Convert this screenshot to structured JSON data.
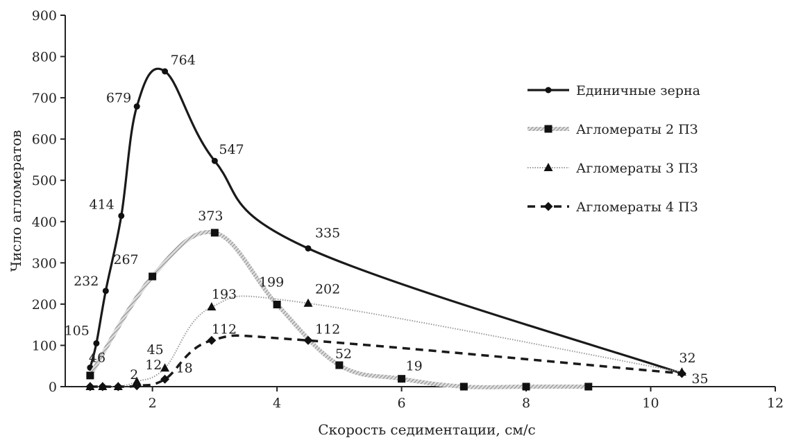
{
  "chart_data": {
    "type": "line",
    "title": "",
    "xlabel": "Скорость седиментации, см/с",
    "ylabel": "Число агломератов",
    "xlim": [
      0.6,
      12
    ],
    "ylim": [
      0,
      900
    ],
    "xticks": [
      2,
      4,
      6,
      8,
      10,
      12
    ],
    "yticks": [
      0,
      100,
      200,
      300,
      400,
      500,
      600,
      700,
      800,
      900
    ],
    "grid": false,
    "legend_position": "right",
    "series": [
      {
        "name": "Единичные зерна",
        "style": "solid",
        "marker": "circle",
        "color": "#1a1a1a",
        "points": [
          [
            1.0,
            46
          ],
          [
            1.1,
            105
          ],
          [
            1.25,
            232
          ],
          [
            1.5,
            414
          ],
          [
            1.75,
            679
          ],
          [
            2.2,
            764
          ],
          [
            3.0,
            547
          ],
          [
            4.5,
            335
          ],
          [
            10.5,
            32
          ]
        ],
        "labels": [
          "46",
          "105",
          "232",
          "414",
          "679",
          "764",
          "547",
          "335",
          "32"
        ]
      },
      {
        "name": "Агломераты 2 ПЗ",
        "style": "hatched",
        "marker": "square",
        "color": "#999999",
        "points": [
          [
            1.0,
            27
          ],
          [
            2.0,
            267
          ],
          [
            3.0,
            373
          ],
          [
            4.0,
            199
          ],
          [
            5.0,
            52
          ],
          [
            6.0,
            19
          ],
          [
            7.0,
            0
          ],
          [
            8.0,
            0
          ],
          [
            9.0,
            0
          ]
        ],
        "labels": [
          "",
          "267",
          "373",
          "199",
          "52",
          "19",
          "",
          "",
          ""
        ]
      },
      {
        "name": "Агломераты 3 ПЗ",
        "style": "dotted",
        "marker": "triangle",
        "color": "#aaaaaa",
        "points": [
          [
            1.0,
            0
          ],
          [
            1.2,
            0
          ],
          [
            1.45,
            0
          ],
          [
            1.75,
            12
          ],
          [
            2.2,
            45
          ],
          [
            2.95,
            193
          ],
          [
            4.5,
            202
          ],
          [
            10.5,
            35
          ]
        ],
        "labels": [
          "",
          "",
          "",
          "12",
          "45",
          "193",
          "202",
          "35"
        ]
      },
      {
        "name": "Агломераты 4 ПЗ",
        "style": "dashed",
        "marker": "diamond",
        "color": "#1a1a1a",
        "points": [
          [
            1.0,
            0
          ],
          [
            1.2,
            0
          ],
          [
            1.45,
            0
          ],
          [
            1.75,
            2
          ],
          [
            2.2,
            18
          ],
          [
            2.95,
            112
          ],
          [
            4.5,
            112
          ],
          [
            10.5,
            32
          ]
        ],
        "labels": [
          "",
          "",
          "",
          "2",
          "18",
          "112",
          "112",
          ""
        ]
      }
    ]
  }
}
